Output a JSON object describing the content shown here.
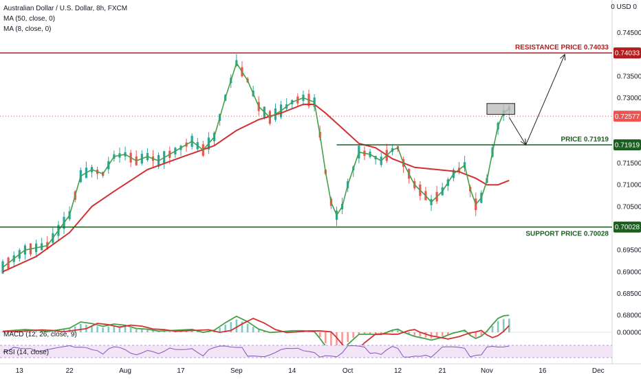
{
  "header": {
    "symbol_title": "Australian Dollar / U.S. Dollar, 8h, FXCM",
    "ma1_label": "MA (50, close, 0)",
    "ma2_label": "MA (8, close, 0)",
    "currency": "0 USD 0"
  },
  "colors": {
    "up_candle": "#26a69a",
    "down_candle": "#ef5350",
    "ma50": "#d32f2f",
    "ma8": "#43a047",
    "resistance": "#b71c1c",
    "level": "#1b5e20",
    "current_price_tag": "#ef5350",
    "rsi_fill": "#f3e5f5",
    "rsi_line": "#7e57c2"
  },
  "chart_data": {
    "type": "line",
    "title": "Australian Dollar / U.S. Dollar, 8h, FXCM",
    "ylim": [
      0.6775,
      0.7525
    ],
    "y_ticks": [
      "0.74500",
      "0.74033",
      "0.73500",
      "0.73000",
      "0.72577",
      "0.71919",
      "0.71500",
      "0.71000",
      "0.70500",
      "0.70028",
      "0.69500",
      "0.69000",
      "0.68500",
      "0.68000"
    ],
    "x_tick_labels": [
      "13",
      "22",
      "Aug",
      "17",
      "Sep",
      "14",
      "Oct",
      "12",
      "21",
      "Nov",
      "16",
      "Dec"
    ],
    "x_tick_index": [
      3,
      12,
      22,
      32,
      42,
      52,
      62,
      71,
      79,
      87,
      97,
      107
    ],
    "n_bars": 110,
    "series": [
      {
        "name": "MA (50, close, 0)",
        "points": [
          [
            0,
            0.69
          ],
          [
            6,
            0.6935
          ],
          [
            12,
            0.699
          ],
          [
            16,
            0.705
          ],
          [
            20,
            0.7085
          ],
          [
            26,
            0.7135
          ],
          [
            32,
            0.7163
          ],
          [
            38,
            0.719
          ],
          [
            42,
            0.7225
          ],
          [
            46,
            0.725
          ],
          [
            50,
            0.7265
          ],
          [
            54,
            0.7285
          ],
          [
            56,
            0.7285
          ],
          [
            58,
            0.7265
          ],
          [
            61,
            0.723
          ],
          [
            64,
            0.7195
          ],
          [
            67,
            0.7185
          ],
          [
            70,
            0.716
          ],
          [
            74,
            0.714
          ],
          [
            78,
            0.7135
          ],
          [
            82,
            0.713
          ],
          [
            85,
            0.7115
          ],
          [
            87,
            0.71
          ],
          [
            89,
            0.71
          ],
          [
            91,
            0.711
          ]
        ]
      },
      {
        "name": "MA (8, close, 0)",
        "points": [
          [
            0,
            0.691
          ],
          [
            4,
            0.695
          ],
          [
            8,
            0.696
          ],
          [
            12,
            0.703
          ],
          [
            14,
            0.712
          ],
          [
            16,
            0.7135
          ],
          [
            18,
            0.7125
          ],
          [
            20,
            0.7165
          ],
          [
            22,
            0.717
          ],
          [
            24,
            0.7155
          ],
          [
            26,
            0.7165
          ],
          [
            28,
            0.7155
          ],
          [
            30,
            0.717
          ],
          [
            32,
            0.7185
          ],
          [
            34,
            0.72
          ],
          [
            36,
            0.718
          ],
          [
            38,
            0.721
          ],
          [
            40,
            0.73
          ],
          [
            42,
            0.738
          ],
          [
            44,
            0.734
          ],
          [
            46,
            0.728
          ],
          [
            48,
            0.7255
          ],
          [
            50,
            0.727
          ],
          [
            52,
            0.729
          ],
          [
            54,
            0.73
          ],
          [
            56,
            0.729
          ],
          [
            57,
            0.7215
          ],
          [
            58,
            0.713
          ],
          [
            59,
            0.706
          ],
          [
            60,
            0.703
          ],
          [
            61,
            0.705
          ],
          [
            62,
            0.71
          ],
          [
            64,
            0.7175
          ],
          [
            66,
            0.717
          ],
          [
            68,
            0.7155
          ],
          [
            70,
            0.718
          ],
          [
            71,
            0.7185
          ],
          [
            72,
            0.715
          ],
          [
            74,
            0.71
          ],
          [
            76,
            0.7075
          ],
          [
            77,
            0.706
          ],
          [
            79,
            0.7085
          ],
          [
            81,
            0.7125
          ],
          [
            83,
            0.7145
          ],
          [
            84,
            0.709
          ],
          [
            85,
            0.7055
          ],
          [
            86,
            0.707
          ],
          [
            87,
            0.711
          ],
          [
            88,
            0.7175
          ],
          [
            89,
            0.7235
          ],
          [
            90,
            0.7265
          ],
          [
            91,
            0.7275
          ]
        ]
      }
    ],
    "levels": [
      {
        "name": "resistance",
        "label": "RESISTANCE PRICE 0.74033",
        "tag": "0.74033",
        "value": 0.74033
      },
      {
        "name": "price",
        "label": "PRICE 0.71919",
        "tag": "0.71919",
        "value": 0.71919
      },
      {
        "name": "support",
        "label": "SUPPORT PRICE 0.70028",
        "tag": "0.70028",
        "value": 0.70028
      }
    ],
    "current_price": {
      "tag": "0.72577",
      "value": 0.72577
    },
    "consolidation_box": {
      "x_start": 87,
      "x_end": 92,
      "y_low": 0.7262,
      "y_high": 0.7287
    },
    "projection_path": [
      [
        91,
        0.7255
      ],
      [
        94,
        0.7192
      ],
      [
        101,
        0.74
      ]
    ],
    "macd": {
      "label": "MACD (12, 26, close, 9)",
      "zero_tag": "0.00000"
    },
    "rsi": {
      "label": "RSI (14, close)"
    }
  }
}
